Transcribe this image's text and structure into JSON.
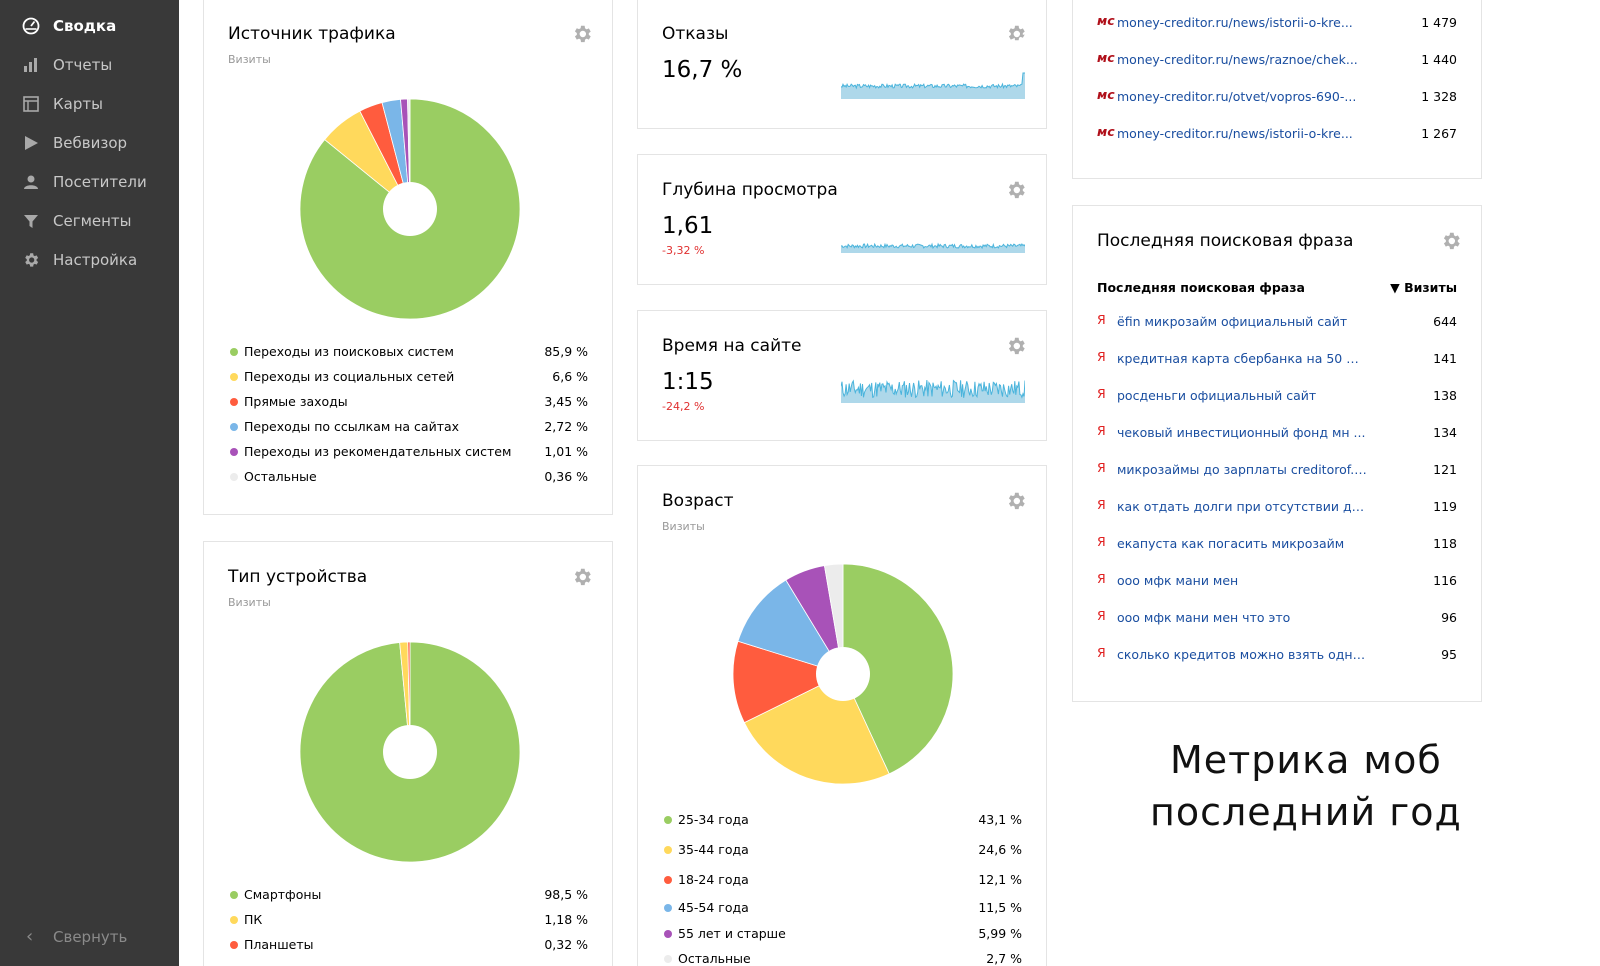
{
  "sidebar": {
    "items": [
      {
        "label": "Сводка",
        "icon": "dashboard-icon"
      },
      {
        "label": "Отчеты",
        "icon": "bar-chart-icon"
      },
      {
        "label": "Карты",
        "icon": "map-icon"
      },
      {
        "label": "Вебвизор",
        "icon": "play-icon"
      },
      {
        "label": "Посетители",
        "icon": "user-icon"
      },
      {
        "label": "Сегменты",
        "icon": "filter-icon"
      },
      {
        "label": "Настройка",
        "icon": "gear-icon"
      }
    ],
    "collapse_label": "Свернуть"
  },
  "traffic": {
    "title": "Источник трафика",
    "subtitle": "Визиты",
    "items": [
      {
        "name": "Переходы из поисковых систем",
        "pct": "85,9 %",
        "value": 85.9,
        "color": "#9acd62"
      },
      {
        "name": "Переходы из социальных сетей",
        "pct": "6,6 %",
        "value": 6.6,
        "color": "#ffd95c"
      },
      {
        "name": "Прямые заходы",
        "pct": "3,45 %",
        "value": 3.45,
        "color": "#ff5c3e"
      },
      {
        "name": "Переходы по ссылкам на сайтах",
        "pct": "2,72 %",
        "value": 2.72,
        "color": "#7ab6e8"
      },
      {
        "name": "Переходы из рекомендательных систем",
        "pct": "1,01 %",
        "value": 1.01,
        "color": "#a852b8"
      },
      {
        "name": "Остальные",
        "pct": "0,36 %",
        "value": 0.36,
        "color": "#ececec"
      }
    ]
  },
  "device": {
    "title": "Тип устройства",
    "subtitle": "Визиты",
    "items": [
      {
        "name": "Смартфоны",
        "pct": "98,5 %",
        "value": 98.5,
        "color": "#9acd62"
      },
      {
        "name": "ПК",
        "pct": "1,18 %",
        "value": 1.18,
        "color": "#ffd95c"
      },
      {
        "name": "Планшеты",
        "pct": "0,32 %",
        "value": 0.32,
        "color": "#ff5c3e"
      }
    ]
  },
  "bounce": {
    "title": "Отказы",
    "value": "16,7 %"
  },
  "depth": {
    "title": "Глубина просмотра",
    "value": "1,61",
    "delta": "-3,32 %"
  },
  "time": {
    "title": "Время на сайте",
    "value": "1:15",
    "delta": "-24,2 %"
  },
  "age": {
    "title": "Возраст",
    "subtitle": "Визиты",
    "items": [
      {
        "name": "25-34 года",
        "pct": "43,1 %",
        "value": 43.1,
        "color": "#9acd62"
      },
      {
        "name": "35-44 года",
        "pct": "24,6 %",
        "value": 24.6,
        "color": "#ffd95c"
      },
      {
        "name": "18-24 года",
        "pct": "12,1 %",
        "value": 12.1,
        "color": "#ff5c3e"
      },
      {
        "name": "45-54 года",
        "pct": "11,5 %",
        "value": 11.5,
        "color": "#7ab6e8"
      },
      {
        "name": "55 лет и старше",
        "pct": "5,99 %",
        "value": 5.99,
        "color": "#a852b8"
      },
      {
        "name": "Остальные",
        "pct": "2,7 %",
        "value": 2.7,
        "color": "#ececec"
      }
    ]
  },
  "pages": {
    "rows": [
      {
        "url": "money-creditor.ru/news/istorii-o-kre...",
        "count": "1 479"
      },
      {
        "url": "money-creditor.ru/news/raznoe/chek...",
        "count": "1 440"
      },
      {
        "url": "money-creditor.ru/otvet/vopros-690-...",
        "count": "1 328"
      },
      {
        "url": "money-creditor.ru/news/istorii-o-kre...",
        "count": "1 267"
      }
    ]
  },
  "search": {
    "title": "Последняя поисковая фраза",
    "col_phrase": "Последняя поисковая фраза",
    "col_visits": "▼ Визиты",
    "rows": [
      {
        "phrase": "ёfin микрозайм официальный сайт",
        "count": "644"
      },
      {
        "phrase": "кредитная карта сбербанка на 50 дн...",
        "count": "141"
      },
      {
        "phrase": "росденьги официальный сайт",
        "count": "138"
      },
      {
        "phrase": "чековый инвестиционный фонд мн ...",
        "count": "134"
      },
      {
        "phrase": "микрозаймы до зарплаты creditorof.ru",
        "count": "121"
      },
      {
        "phrase": "как отдать долги при отсутствии ден...",
        "count": "119"
      },
      {
        "phrase": "екапуста как погасить микрозайм",
        "count": "118"
      },
      {
        "phrase": "ооо мфк мани мен",
        "count": "116"
      },
      {
        "phrase": "ооо мфк мани мен что это",
        "count": "96"
      },
      {
        "phrase": "сколько кредитов можно взять одно...",
        "count": "95"
      }
    ]
  },
  "caption": {
    "line1": "Метрика моб",
    "line2": "последний год"
  },
  "colors": {
    "sidebar_bg": "#393939",
    "link": "#1a4ea0",
    "negative": "#e03030",
    "spark_fill": "#aed8ea",
    "spark_line": "#4ab4dc"
  }
}
